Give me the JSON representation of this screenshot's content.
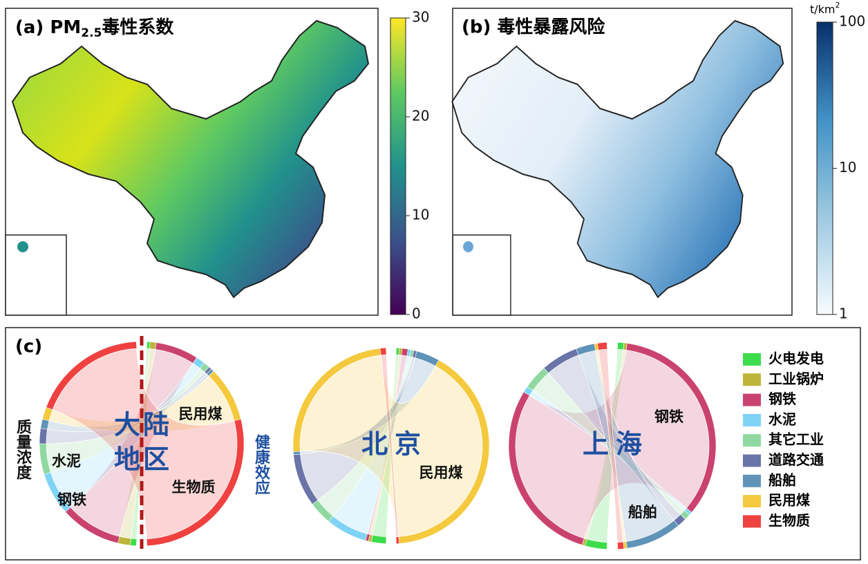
{
  "panel_a": {
    "title_prefix": "(a) PM",
    "title_sub": "2.5",
    "title_suffix": "毒性系数",
    "colorbar": {
      "lim": [
        0,
        30
      ],
      "ticks": [
        0,
        10,
        20,
        30
      ],
      "scale": "linear",
      "colors": [
        "#440154",
        "#3b528b",
        "#21918c",
        "#5ec962",
        "#fde725"
      ]
    }
  },
  "panel_b": {
    "title": "(b) 毒性暴露风险",
    "unit": "t/km",
    "unit_sup": "2",
    "colorbar": {
      "lim": [
        1,
        100
      ],
      "ticks": [
        1,
        10,
        100
      ],
      "scale": "log",
      "colors": [
        "#f7fbff",
        "#9ecae1",
        "#4292c6",
        "#08306b"
      ]
    }
  },
  "panel_c": {
    "label": "(c)",
    "legend": [
      {
        "name": "火电发电",
        "color": "#3ddc4a"
      },
      {
        "name": "工业锅炉",
        "color": "#bdb43a"
      },
      {
        "name": "钢铁",
        "color": "#c9436e"
      },
      {
        "name": "水泥",
        "color": "#7fd3f5"
      },
      {
        "name": "其它工业",
        "color": "#8fd9a0"
      },
      {
        "name": "道路交通",
        "color": "#6b74a8"
      },
      {
        "name": "船舶",
        "color": "#5f93b8"
      },
      {
        "name": "民用煤",
        "color": "#f4c93d"
      },
      {
        "name": "生物质",
        "color": "#ef4140"
      }
    ],
    "diagrams": [
      {
        "center_label": [
          "大",
          "陆",
          "地",
          "区"
        ],
        "left_label": "质量浓度",
        "right_label": "健康效应",
        "mass": [
          2,
          4,
          20,
          14,
          10,
          5,
          3,
          4,
          38
        ],
        "health": [
          1,
          2,
          14,
          3,
          2,
          1,
          1,
          18,
          58
        ],
        "labels": [
          "民用煤",
          "生物质",
          "水泥",
          "钢铁"
        ]
      },
      {
        "center_label": [
          "北",
          "京"
        ],
        "mass": [
          5,
          1,
          1,
          14,
          8,
          18,
          1,
          50,
          2
        ],
        "health": [
          1,
          1,
          2,
          1,
          1,
          1,
          8,
          84,
          1
        ],
        "labels": [
          "民用煤"
        ]
      },
      {
        "center_label": [
          "上",
          "海"
        ],
        "mass": [
          7,
          1,
          60,
          2,
          8,
          12,
          6,
          1,
          3
        ],
        "health": [
          2,
          1,
          70,
          1,
          2,
          3,
          18,
          1,
          2
        ],
        "labels": [
          "钢铁",
          "船舶"
        ]
      }
    ]
  }
}
